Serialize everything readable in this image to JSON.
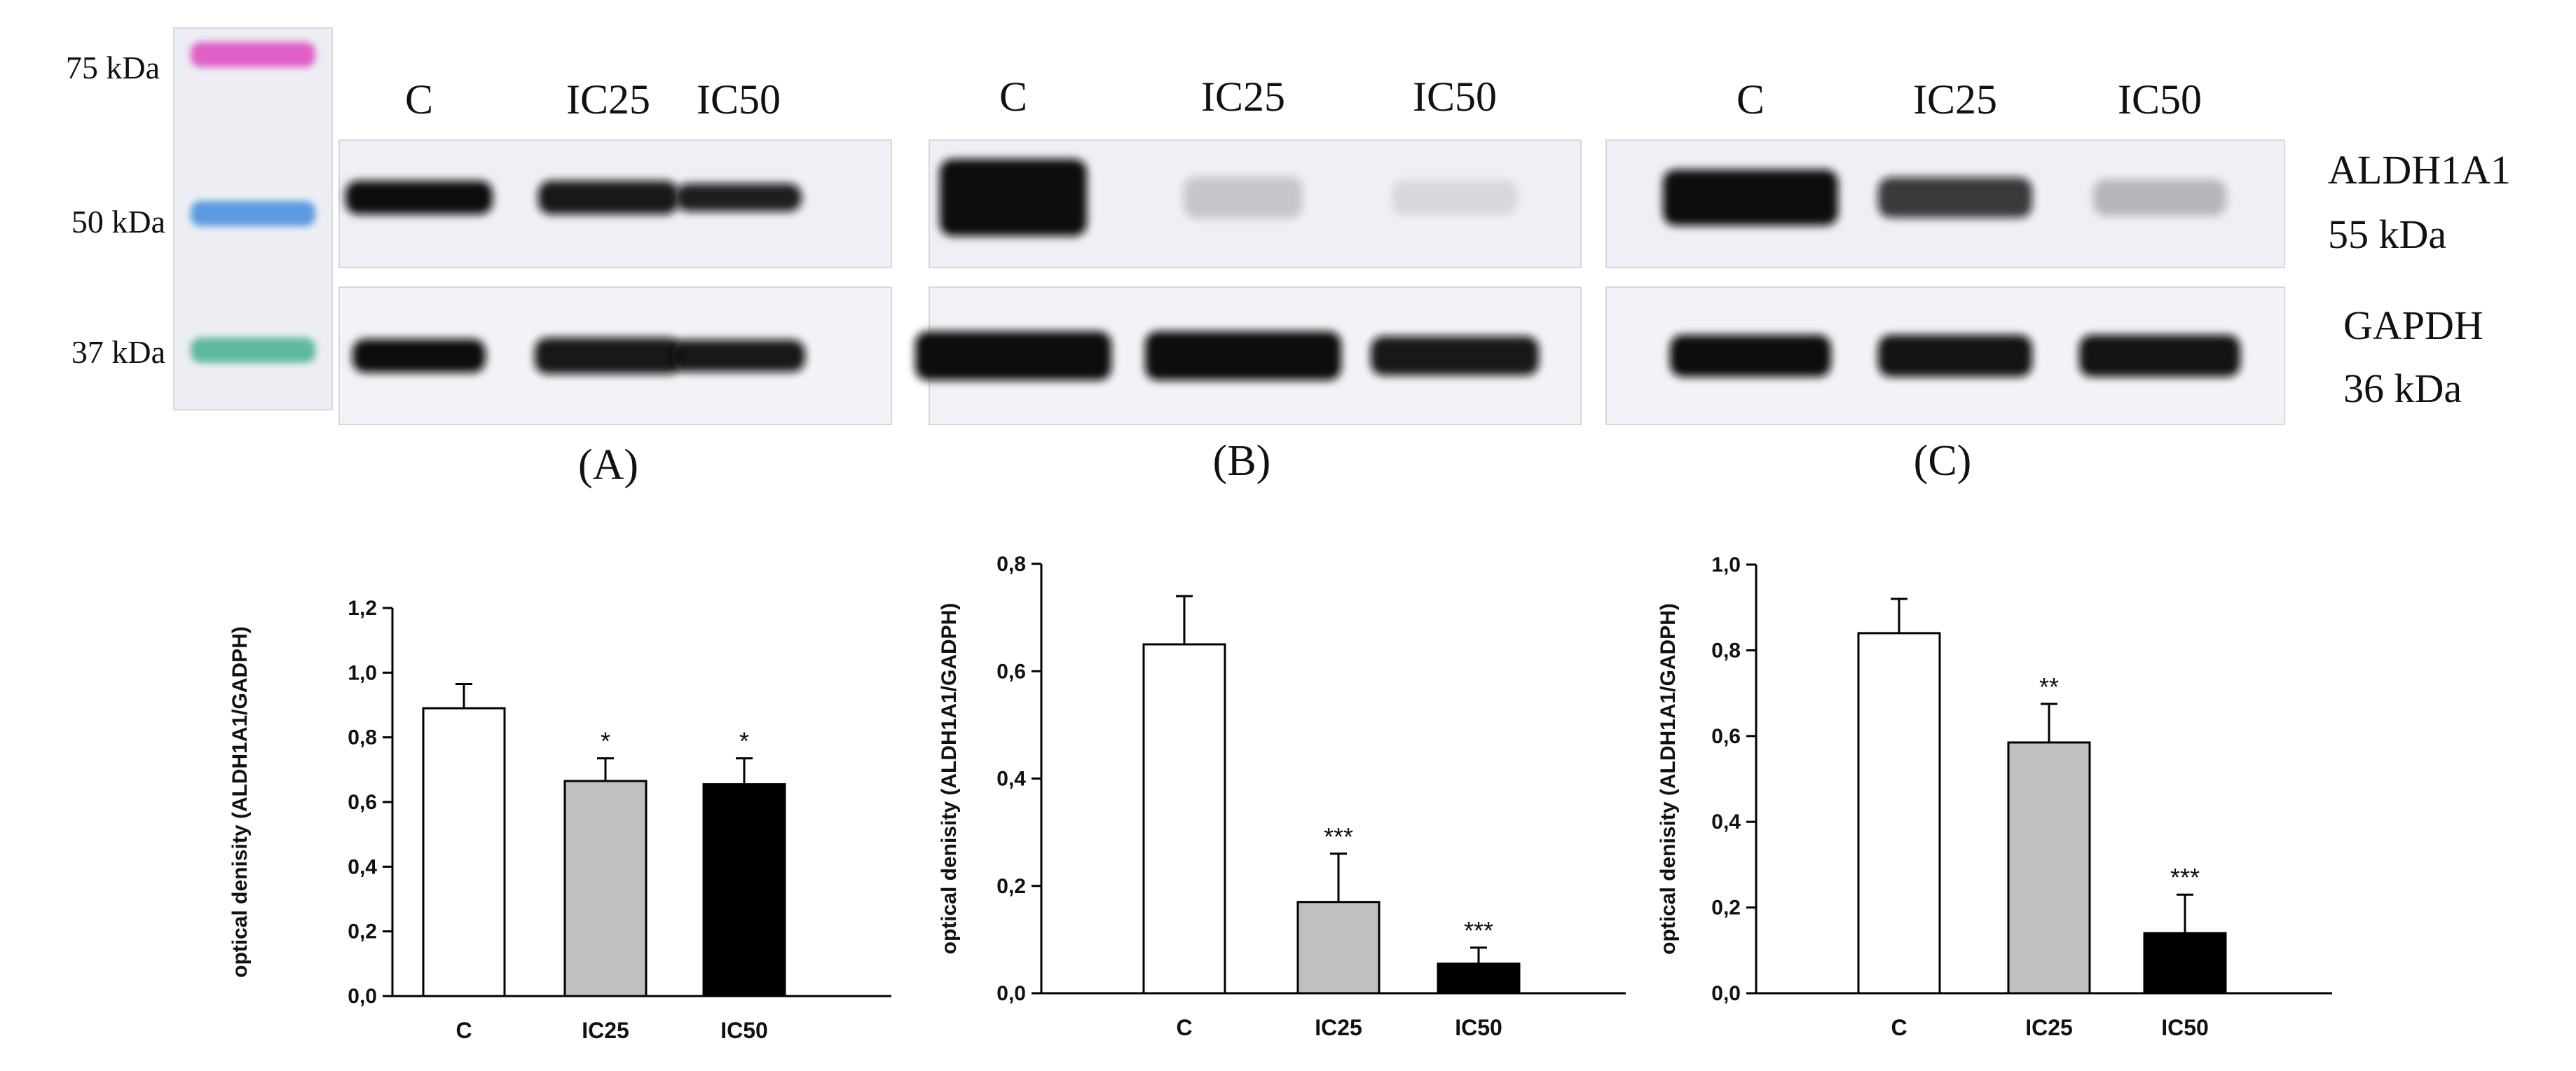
{
  "ladder": {
    "markers": [
      {
        "label": "75 kDa",
        "color": "#e060c8"
      },
      {
        "label": "50 kDa",
        "color": "#5b9be0"
      },
      {
        "label": "37 kDa",
        "color": "#5fb8a0"
      }
    ]
  },
  "blot_lanes": [
    "C",
    "IC25",
    "IC50"
  ],
  "protein_labels": {
    "aldh_name": "ALDH1A1",
    "aldh_size": "55 kDa",
    "gapdh_name": "GAPDH",
    "gapdh_size": "36 kDa"
  },
  "panel_letters": [
    "(A)",
    "(B)",
    "(C)"
  ],
  "colors": {
    "C": "#ffffff",
    "IC25": "#c0c0c0",
    "IC50": "#000000",
    "membrane": "#eef0f6",
    "band": "#111111"
  },
  "chart_data": [
    {
      "type": "bar",
      "categories": [
        "C",
        "IC25",
        "IC50"
      ],
      "values": [
        0.89,
        0.665,
        0.655
      ],
      "errors": [
        0.075,
        0.07,
        0.08
      ],
      "significance": [
        "",
        "*",
        "*"
      ],
      "ylabel": "optical denisity (ALDH1A1/GADPH)",
      "ylim": [
        0,
        1.2
      ],
      "yticks": [
        "0,0",
        "0,2",
        "0,4",
        "0,6",
        "0,8",
        "1,0",
        "1,2"
      ],
      "ytick_values": [
        0,
        0.2,
        0.4,
        0.6,
        0.8,
        1.0,
        1.2
      ],
      "grid": false
    },
    {
      "type": "bar",
      "categories": [
        "C",
        "IC25",
        "IC50"
      ],
      "values": [
        0.65,
        0.17,
        0.055
      ],
      "errors": [
        0.09,
        0.09,
        0.03
      ],
      "significance": [
        "",
        "***",
        "***"
      ],
      "ylabel": "optical denisity (ALDH1A1/GADPH)",
      "ylim": [
        0,
        0.8
      ],
      "yticks": [
        "0,0",
        "0,2",
        "0,4",
        "0,6",
        "0,8"
      ],
      "ytick_values": [
        0,
        0.2,
        0.4,
        0.6,
        0.8
      ],
      "grid": false
    },
    {
      "type": "bar",
      "categories": [
        "C",
        "IC25",
        "IC50"
      ],
      "values": [
        0.84,
        0.585,
        0.14
      ],
      "errors": [
        0.08,
        0.09,
        0.09
      ],
      "significance": [
        "",
        "**",
        "***"
      ],
      "ylabel": "optical denisity (ALDH1A1/GADPH)",
      "ylim": [
        0,
        1.0
      ],
      "yticks": [
        "0,0",
        "0,2",
        "0,4",
        "0,6",
        "0,8",
        "1,0"
      ],
      "ytick_values": [
        0,
        0.2,
        0.4,
        0.6,
        0.8,
        1.0
      ],
      "grid": false
    }
  ]
}
